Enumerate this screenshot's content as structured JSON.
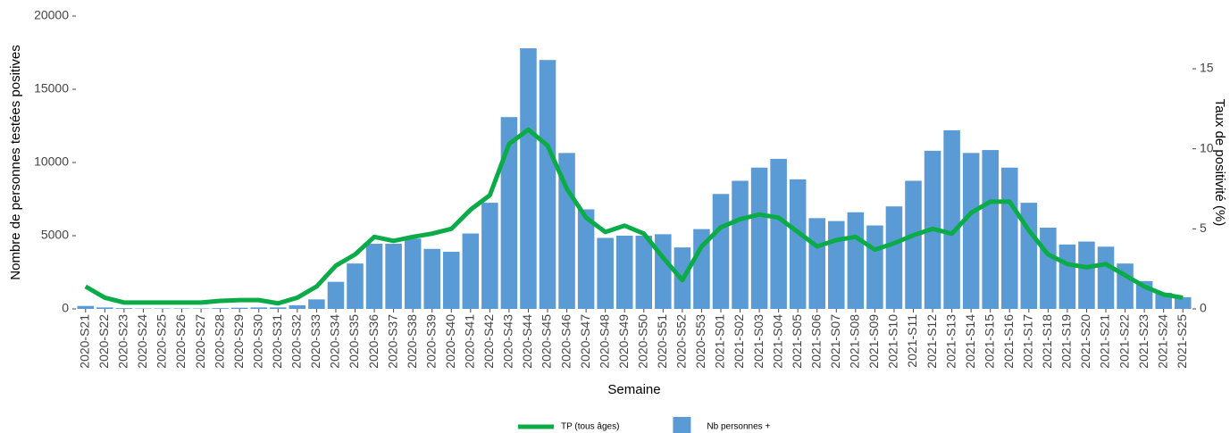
{
  "chart_data": {
    "type": "bar",
    "xlabel": "Semaine",
    "ylabel": "Nombre de personnes testées positives",
    "y2label": "Taux de positivité (%)",
    "categories": [
      "2020-S21",
      "2020-S22",
      "2020-S23",
      "2020-S24",
      "2020-S25",
      "2020-S26",
      "2020-S27",
      "2020-S28",
      "2020-S29",
      "2020-S30",
      "2020-S31",
      "2020-S32",
      "2020-S33",
      "2020-S34",
      "2020-S35",
      "2020-S36",
      "2020-S37",
      "2020-S38",
      "2020-S39",
      "2020-S40",
      "2020-S41",
      "2020-S42",
      "2020-S43",
      "2020-S44",
      "2020-S45",
      "2020-S46",
      "2020-S47",
      "2020-S48",
      "2020-S49",
      "2020-S50",
      "2020-S51",
      "2020-S52",
      "2020-S53",
      "2021-S01",
      "2021-S02",
      "2021-S03",
      "2021-S04",
      "2021-S05",
      "2021-S06",
      "2021-S07",
      "2021-S08",
      "2021-S09",
      "2021-S10",
      "2021-S11",
      "2021-S12",
      "2021-S13",
      "2021-S14",
      "2021-S15",
      "2021-S16",
      "2021-S17",
      "2021-S18",
      "2021-S19",
      "2021-S20",
      "2021-S21",
      "2021-S22",
      "2021-S23",
      "2021-S24",
      "2021-S25"
    ],
    "series": [
      {
        "name": "TP (tous âges)",
        "type": "line",
        "axis": "y2",
        "color": "#0bac48",
        "values": [
          1.4,
          0.7,
          0.4,
          0.4,
          0.4,
          0.4,
          0.4,
          0.5,
          0.55,
          0.55,
          0.35,
          0.7,
          1.4,
          2.7,
          3.4,
          4.5,
          4.25,
          4.5,
          4.7,
          5.0,
          6.2,
          7.1,
          10.3,
          11.2,
          10.2,
          7.5,
          5.7,
          4.8,
          5.2,
          4.7,
          3.2,
          1.8,
          3.9,
          5.1,
          5.6,
          5.9,
          5.7,
          4.8,
          3.9,
          4.3,
          4.5,
          3.7,
          4.1,
          4.6,
          5.0,
          4.7,
          6.0,
          6.7,
          6.7,
          4.9,
          3.4,
          2.8,
          2.6,
          2.8,
          2.1,
          1.4,
          0.9,
          0.7
        ]
      },
      {
        "name": "Nb personnes +",
        "type": "bar",
        "color": "#5b9bd5",
        "values": [
          200,
          100,
          50,
          30,
          30,
          30,
          30,
          50,
          80,
          100,
          100,
          250,
          650,
          1850,
          3100,
          4450,
          4450,
          4800,
          4100,
          3900,
          5150,
          7250,
          13100,
          17800,
          17000,
          10650,
          6800,
          4850,
          5000,
          5000,
          5100,
          4200,
          5450,
          7850,
          8750,
          9650,
          10250,
          8850,
          6200,
          6000,
          6600,
          5700,
          7000,
          8750,
          10800,
          12200,
          10650,
          10850,
          9650,
          7250,
          5550,
          4400,
          4600,
          4250,
          3100,
          1900,
          1100,
          800
        ]
      }
    ],
    "ylim": [
      0,
      20000
    ],
    "yticks": [
      0,
      5000,
      10000,
      15000,
      20000
    ],
    "y2lim": [
      0,
      18.29
    ],
    "y2ticks": [
      0,
      5,
      10,
      15
    ],
    "grid": false,
    "legend": "bottom"
  }
}
